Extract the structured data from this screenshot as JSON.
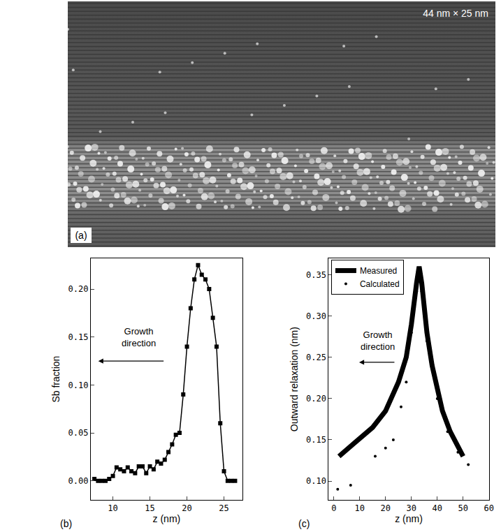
{
  "image_panel": {
    "panel_label": "(a)",
    "scale_text": "44 nm × 25 nm"
  },
  "chart_data": [
    {
      "type": "line",
      "panel_label": "(b)",
      "x_label": "z (nm)",
      "y_label": "Sb fraction",
      "annotations": [
        "Growth direction"
      ],
      "color": "#000000",
      "marker": "square",
      "x": [
        7.5,
        8,
        8.5,
        9,
        9.5,
        10,
        10.5,
        11,
        11.5,
        12,
        12.5,
        13,
        13.5,
        14,
        14.5,
        15,
        15.5,
        16,
        16.5,
        17,
        17.5,
        18,
        18.5,
        19,
        19.5,
        20,
        20.5,
        21,
        21.5,
        22,
        22.5,
        23,
        23.5,
        24,
        24.5,
        25,
        25.5,
        26,
        26.5
      ],
      "values": [
        0.002,
        0.0,
        0.0,
        0.0,
        0.002,
        0.005,
        0.014,
        0.012,
        0.01,
        0.014,
        0.01,
        0.008,
        0.015,
        0.015,
        0.008,
        0.015,
        0.012,
        0.02,
        0.018,
        0.022,
        0.03,
        0.038,
        0.048,
        0.05,
        0.09,
        0.14,
        0.18,
        0.21,
        0.225,
        0.215,
        0.21,
        0.2,
        0.17,
        0.14,
        0.06,
        0.01,
        0.0,
        0.0,
        0.0
      ],
      "xlim": [
        7,
        27.5
      ],
      "ylim": [
        -0.02,
        0.232
      ],
      "xticks": [
        10,
        15,
        20,
        25
      ],
      "yticks": [
        {
          "value": 0,
          "label": "0.00"
        },
        {
          "value": 0.05,
          "label": "0.05"
        },
        {
          "value": 0.1,
          "label": "0.10"
        },
        {
          "value": 0.15,
          "label": "0.15"
        },
        {
          "value": 0.2,
          "label": "0.20"
        }
      ]
    },
    {
      "type": "line",
      "panel_label": "(c)",
      "x_label": "z (nm)",
      "y_label": "Outward relaxation (nm)",
      "annotations": [
        "Growth direction"
      ],
      "legend": "top left",
      "series": [
        {
          "name": "Measured",
          "color": "#000000",
          "line_style": "solid",
          "x": [
            2,
            5,
            10,
            15,
            20,
            25,
            28,
            30,
            32,
            33,
            34,
            36,
            38,
            40,
            42,
            45,
            48,
            50
          ],
          "values": [
            0.13,
            0.138,
            0.15,
            0.165,
            0.185,
            0.22,
            0.25,
            0.29,
            0.34,
            0.36,
            0.34,
            0.28,
            0.24,
            0.21,
            0.185,
            0.16,
            0.14,
            0.13
          ]
        },
        {
          "name": "Calculated",
          "type": "scatter",
          "marker": "dot",
          "color": "#000000",
          "x": [
            1.5,
            6.5,
            16,
            20,
            23,
            26,
            28,
            30,
            32,
            34,
            36,
            40,
            44,
            48,
            52
          ],
          "values": [
            0.09,
            0.095,
            0.13,
            0.14,
            0.15,
            0.19,
            0.22,
            0.28,
            0.33,
            0.33,
            0.27,
            0.2,
            0.16,
            0.135,
            0.12
          ]
        }
      ],
      "xlim": [
        -2,
        60
      ],
      "ylim": [
        0.077,
        0.37
      ],
      "xticks": [
        0,
        10,
        20,
        30,
        40,
        50,
        60
      ],
      "yticks": [
        {
          "value": 0.1,
          "label": "0.10"
        },
        {
          "value": 0.15,
          "label": "0.15"
        },
        {
          "value": 0.2,
          "label": "0.20"
        },
        {
          "value": 0.25,
          "label": "0.25"
        },
        {
          "value": 0.3,
          "label": "0.30"
        },
        {
          "value": 0.35,
          "label": "0.35"
        }
      ]
    }
  ]
}
